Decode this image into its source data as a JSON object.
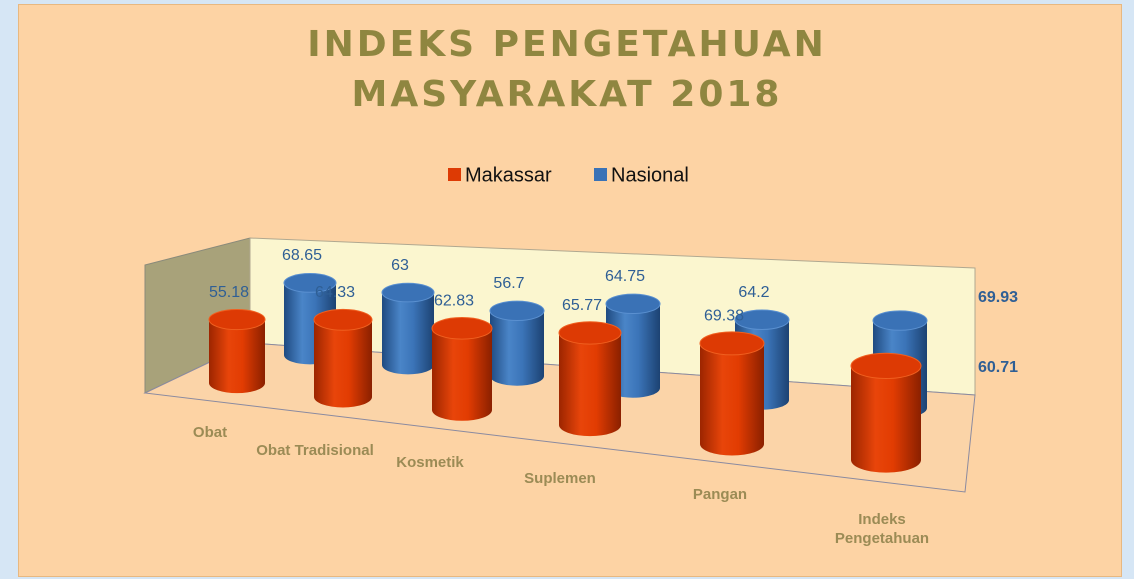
{
  "chart_data": {
    "type": "bar3d",
    "title": "Indeks Pengetahuan Masyarakat 2018",
    "categories": [
      "Obat",
      "Obat Tradisional",
      "Kosmetik",
      "Suplemen",
      "Pangan",
      "Indeks Pengetahuan"
    ],
    "series": [
      {
        "name": "Makassar",
        "color": "#dd3a04",
        "values": [
          55.18,
          64.33,
          62.83,
          65.77,
          69.38,
          60.71
        ]
      },
      {
        "name": "Nasional",
        "color": "#3a72b6",
        "values": [
          68.65,
          63,
          56.7,
          64.75,
          64.2,
          69.93
        ]
      }
    ],
    "legend": "top"
  }
}
